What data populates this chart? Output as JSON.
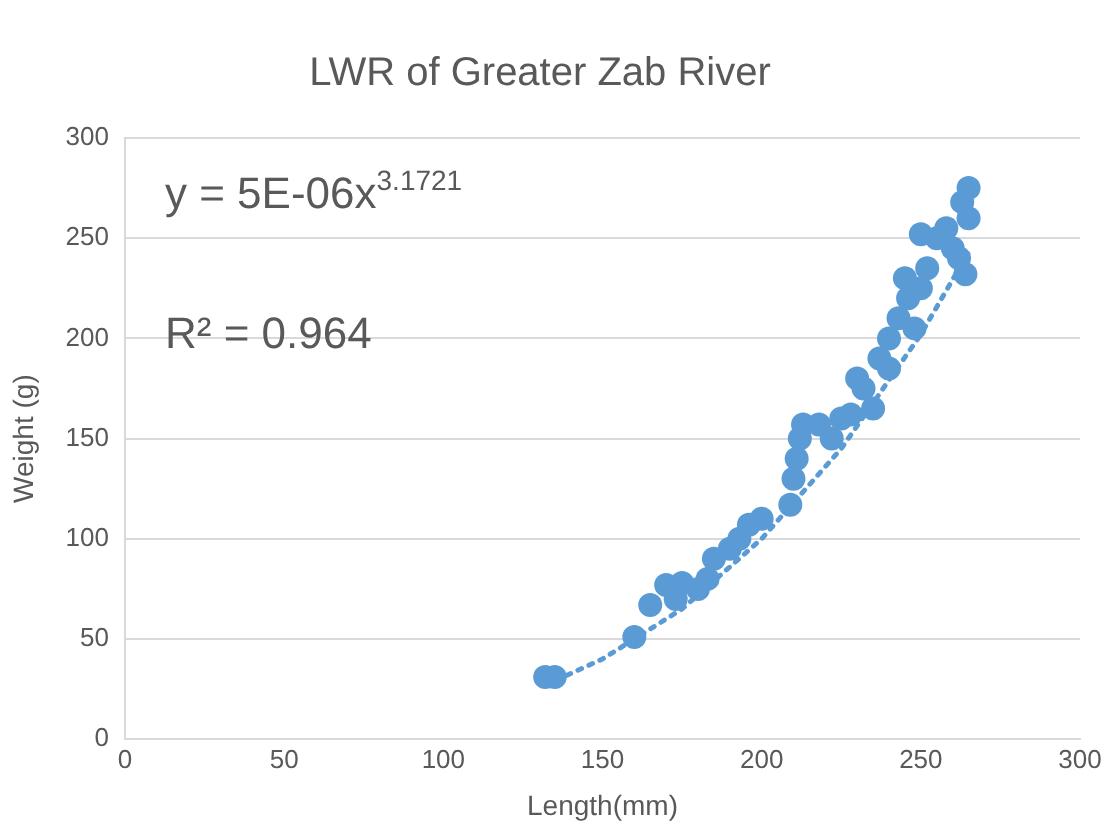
{
  "chart_data": {
    "type": "scatter",
    "title": "LWR of Greater Zab River",
    "xlabel": "Length(mm)",
    "ylabel": "Weight (g)",
    "xlim": [
      0,
      300
    ],
    "xticks": [
      0,
      50,
      100,
      150,
      200,
      250,
      300
    ],
    "ylim": [
      0,
      300
    ],
    "yticks": [
      0,
      50,
      100,
      150,
      200,
      250,
      300
    ],
    "grid": "y",
    "legend": false,
    "marker": "circle",
    "annotations": [
      "y = 5E-06x$^{3.1721}$",
      "R² = 0.964"
    ],
    "series": [
      {
        "color": "#5b9bd5",
        "x": [
          132,
          135,
          160,
          165,
          170,
          173,
          175,
          180,
          183,
          185,
          190,
          193,
          196,
          200,
          209,
          210,
          211,
          212,
          213,
          218,
          222,
          225,
          228,
          230,
          232,
          235,
          237,
          240,
          240,
          243,
          245,
          246,
          248,
          250,
          250,
          252,
          255,
          258,
          260,
          262,
          263,
          264,
          265,
          265
        ],
        "values": [
          31,
          31,
          51,
          67,
          77,
          70,
          78,
          75,
          80,
          90,
          95,
          100,
          107,
          110,
          117,
          130,
          140,
          150,
          157,
          157,
          150,
          160,
          162,
          180,
          175,
          165,
          190,
          200,
          185,
          210,
          230,
          220,
          205,
          225,
          252,
          235,
          250,
          255,
          245,
          240,
          268,
          232,
          260,
          275
        ]
      },
      {
        "type": "line",
        "color": "#5b9bd5",
        "line_style": "dotted",
        "marker": "none",
        "x": [
          132,
          150,
          175,
          200,
          225,
          250,
          265
        ],
        "values": [
          27,
          40,
          65,
          100,
          145,
          202,
          243
        ]
      }
    ]
  }
}
